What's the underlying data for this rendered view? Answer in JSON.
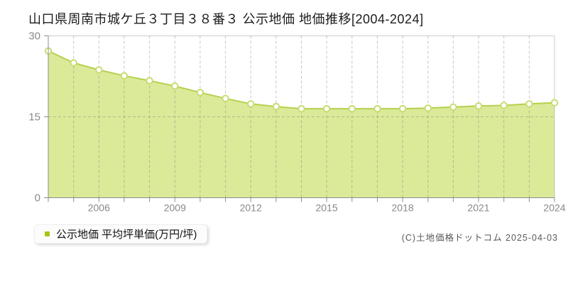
{
  "title": "山口県周南市城ケ丘３丁目３８番３ 公示地価 地価推移[2004-2024]",
  "legend": {
    "label": "公示地価 平均坪単価(万円/坪)"
  },
  "copyright": "(C)土地価格ドットコム 2025-04-03",
  "colors": {
    "area_fill": "#d8e994",
    "line": "#b4d14d",
    "marker_fill": "#ffffff",
    "marker_stroke": "#c8dc72",
    "legend_swatch": "#a3c614",
    "grid": "#787878",
    "axis": "#8c8c8c",
    "border": "#999999",
    "tick_label": "#888888"
  },
  "chart_data": {
    "type": "area",
    "title": "山口県周南市城ケ丘３丁目３８番３ 公示地価 地価推移[2004-2024]",
    "x": [
      2004,
      2005,
      2006,
      2007,
      2008,
      2009,
      2010,
      2011,
      2012,
      2013,
      2014,
      2015,
      2016,
      2017,
      2018,
      2019,
      2020,
      2021,
      2022,
      2023,
      2024
    ],
    "series": [
      {
        "name": "公示地価 平均坪単価(万円/坪)",
        "values": [
          27.2,
          25.0,
          23.7,
          22.6,
          21.7,
          20.7,
          19.5,
          18.4,
          17.4,
          16.9,
          16.5,
          16.5,
          16.5,
          16.5,
          16.5,
          16.6,
          16.8,
          17.0,
          17.1,
          17.4,
          17.6
        ]
      }
    ],
    "xlabel": "",
    "ylabel": "",
    "ylim": [
      0,
      30
    ],
    "yticks": [
      0,
      15,
      30
    ],
    "xticks": [
      2006,
      2009,
      2012,
      2015,
      2018,
      2021,
      2024
    ],
    "grid_ylines": [
      15
    ],
    "grid_style": "dashed",
    "legend_position": "bottom-left"
  }
}
